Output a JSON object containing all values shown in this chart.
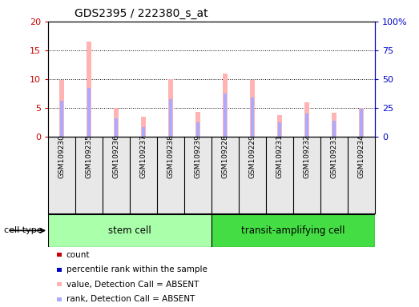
{
  "title": "GDS2395 / 222380_s_at",
  "samples": [
    "GSM109230",
    "GSM109235",
    "GSM109236",
    "GSM109237",
    "GSM109238",
    "GSM109239",
    "GSM109228",
    "GSM109229",
    "GSM109231",
    "GSM109232",
    "GSM109233",
    "GSM109234"
  ],
  "cell_types": [
    "stem cell",
    "stem cell",
    "stem cell",
    "stem cell",
    "stem cell",
    "stem cell",
    "transit-amplifying cell",
    "transit-amplifying cell",
    "transit-amplifying cell",
    "transit-amplifying cell",
    "transit-amplifying cell",
    "transit-amplifying cell"
  ],
  "pink_bar_heights": [
    9.9,
    16.5,
    5.0,
    3.4,
    10.0,
    4.3,
    11.0,
    9.9,
    3.7,
    5.9,
    4.2,
    5.0
  ],
  "blue_bar_heights": [
    6.3,
    8.4,
    3.2,
    1.7,
    6.5,
    2.5,
    7.5,
    6.8,
    2.5,
    4.0,
    2.8,
    4.9
  ],
  "ylim_left": [
    0,
    20
  ],
  "ylim_right": [
    0,
    100
  ],
  "yticks_left": [
    0,
    5,
    10,
    15,
    20
  ],
  "yticks_right": [
    0,
    25,
    50,
    75,
    100
  ],
  "ytick_labels_left": [
    "0",
    "5",
    "10",
    "15",
    "20"
  ],
  "ytick_labels_right": [
    "0",
    "25",
    "50",
    "75",
    "100%"
  ],
  "left_axis_color": "#cc0000",
  "right_axis_color": "#0000cc",
  "pink_color": "#ffb3b3",
  "blue_color": "#aaaaff",
  "bar_width": 0.18,
  "blue_bar_width": 0.18,
  "stem_cell_color": "#aaffaa",
  "transit_cell_color": "#44dd44",
  "legend_items": [
    {
      "color": "#cc0000",
      "label": "count"
    },
    {
      "color": "#0000cc",
      "label": "percentile rank within the sample"
    },
    {
      "color": "#ffb3b3",
      "label": "value, Detection Call = ABSENT"
    },
    {
      "color": "#aaaaff",
      "label": "rank, Detection Call = ABSENT"
    }
  ],
  "bg_color": "#e8e8e8",
  "plot_bg": "#ffffff"
}
